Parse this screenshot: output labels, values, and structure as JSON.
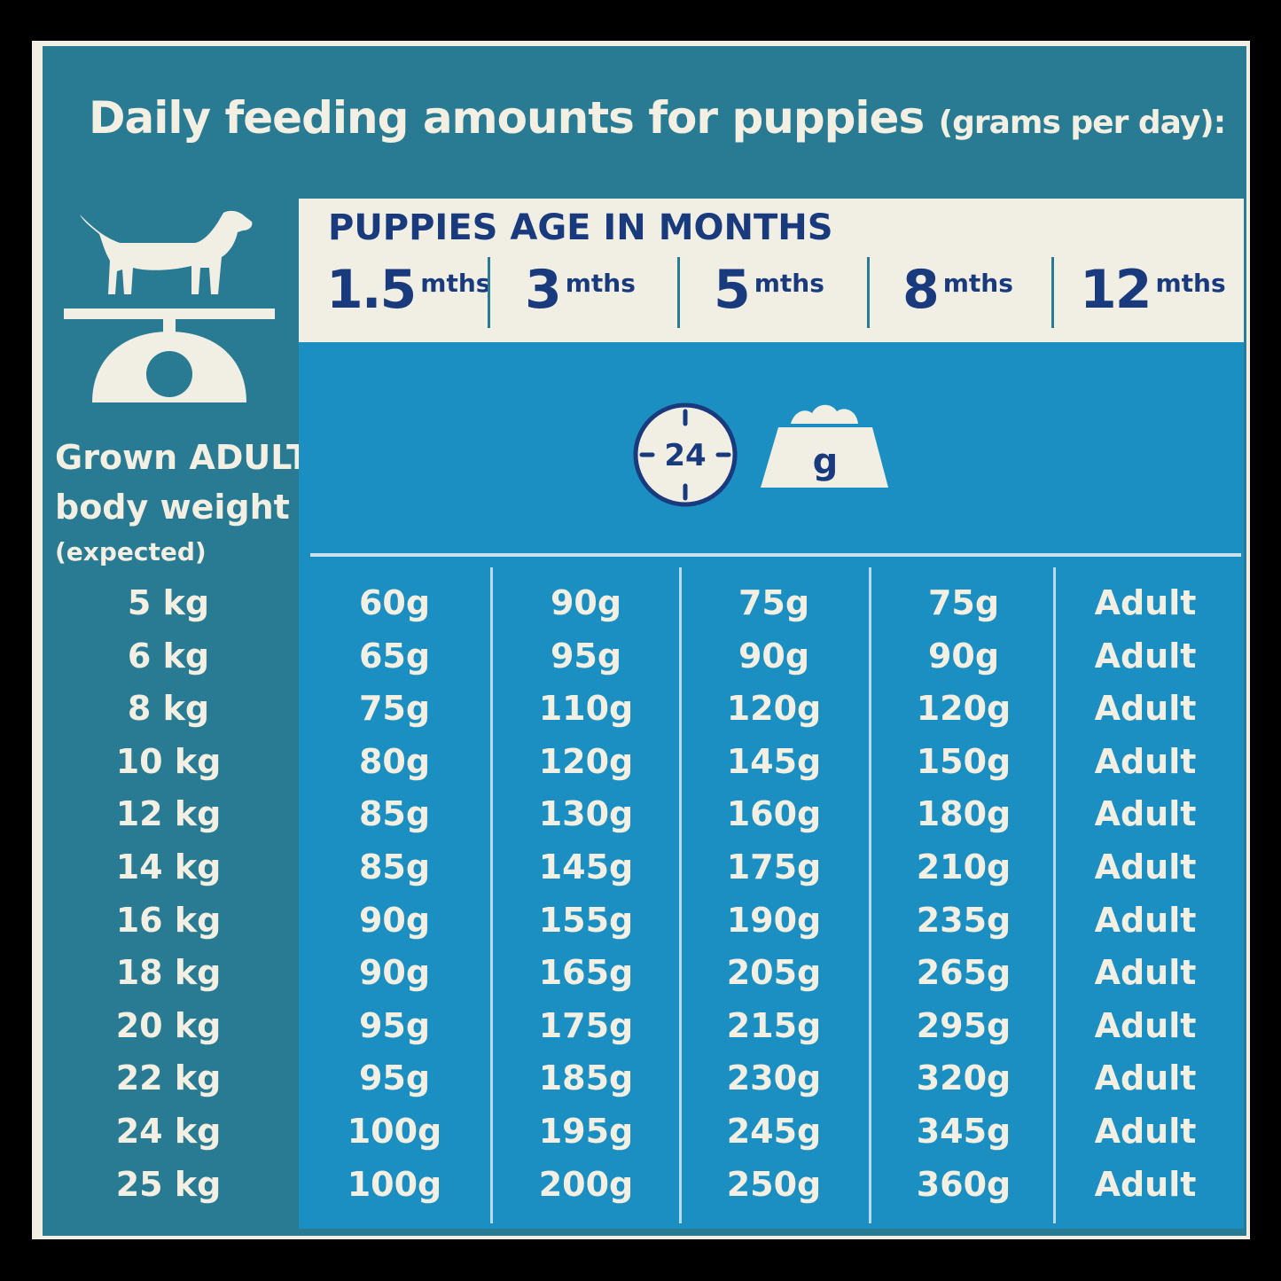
{
  "title": "Daily feeding amounts for puppies",
  "title_sub": "(grams per day):",
  "header_label": "PUPPIES AGE IN MONTHS",
  "ages": [
    {
      "num": "1.5",
      "unit": "mths"
    },
    {
      "num": "3",
      "unit": "mths"
    },
    {
      "num": "5",
      "unit": "mths"
    },
    {
      "num": "8",
      "unit": "mths"
    },
    {
      "num": "12",
      "unit": "mths"
    }
  ],
  "icon_clock_text": "24",
  "icon_bowl_text": "g",
  "left_label": {
    "line1": "Grown ADULT",
    "line2": "body weight",
    "line3": "(expected)"
  },
  "rows": [
    {
      "weight": "5 kg",
      "values": [
        "60g",
        "90g",
        "75g",
        "75g",
        "Adult"
      ]
    },
    {
      "weight": "6 kg",
      "values": [
        "65g",
        "95g",
        "90g",
        "90g",
        "Adult"
      ]
    },
    {
      "weight": "8 kg",
      "values": [
        "75g",
        "110g",
        "120g",
        "120g",
        "Adult"
      ]
    },
    {
      "weight": "10 kg",
      "values": [
        "80g",
        "120g",
        "145g",
        "150g",
        "Adult"
      ]
    },
    {
      "weight": "12 kg",
      "values": [
        "85g",
        "130g",
        "160g",
        "180g",
        "Adult"
      ]
    },
    {
      "weight": "14 kg",
      "values": [
        "85g",
        "145g",
        "175g",
        "210g",
        "Adult"
      ]
    },
    {
      "weight": "16 kg",
      "values": [
        "90g",
        "155g",
        "190g",
        "235g",
        "Adult"
      ]
    },
    {
      "weight": "18 kg",
      "values": [
        "90g",
        "165g",
        "205g",
        "265g",
        "Adult"
      ]
    },
    {
      "weight": "20 kg",
      "values": [
        "95g",
        "175g",
        "215g",
        "295g",
        "Adult"
      ]
    },
    {
      "weight": "22 kg",
      "values": [
        "95g",
        "185g",
        "230g",
        "320g",
        "Adult"
      ]
    },
    {
      "weight": "24 kg",
      "values": [
        "100g",
        "195g",
        "245g",
        "345g",
        "Adult"
      ]
    },
    {
      "weight": "25 kg",
      "values": [
        "100g",
        "200g",
        "250g",
        "360g",
        "Adult"
      ]
    }
  ],
  "colors": {
    "teal": "#287b92",
    "cream": "#f1eee4",
    "blue": "#1b8fc1",
    "navy": "#193a7c"
  }
}
